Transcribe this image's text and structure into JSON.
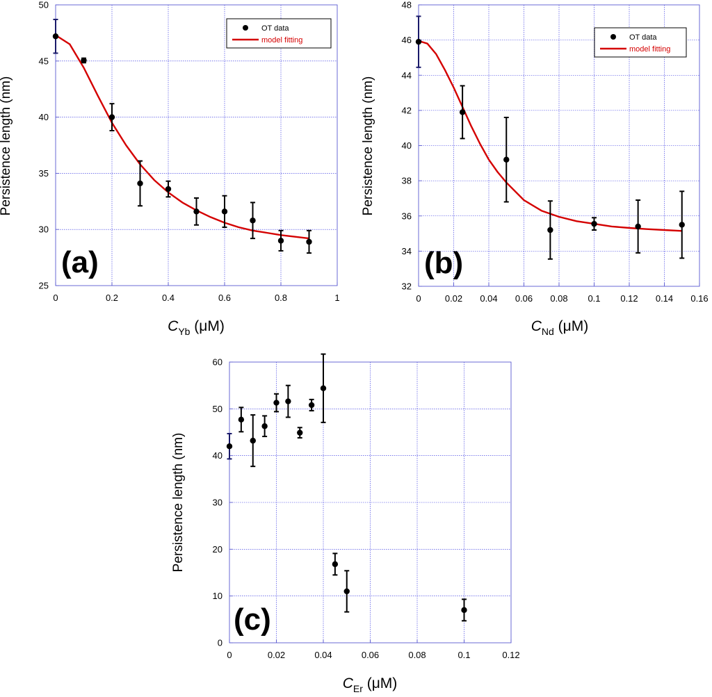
{
  "chart_data": [
    {
      "id": "a",
      "type": "scatter",
      "panel_label": "(a)",
      "xlabel_main": "C",
      "xlabel_sub": "Yb",
      "xlabel_unit": " (μM)",
      "ylabel": "Persistence length (nm)",
      "xlim": [
        0,
        1
      ],
      "ylim": [
        25,
        50
      ],
      "xticks": [
        0,
        0.2,
        0.4,
        0.6,
        0.8,
        1
      ],
      "yticks": [
        25,
        30,
        35,
        40,
        45,
        50
      ],
      "xtick_labels": [
        "0",
        "0.2",
        "0.4",
        "0.6",
        "0.8",
        "1"
      ],
      "ytick_labels": [
        "25",
        "30",
        "35",
        "40",
        "45",
        "50"
      ],
      "legend": {
        "position": "top-right",
        "data_label": "OT data",
        "fit_label": "model fitting"
      },
      "points": [
        {
          "x": 0,
          "y": 47.2,
          "err": 1.5
        },
        {
          "x": 0.1,
          "y": 45.05,
          "err": 0.2
        },
        {
          "x": 0.2,
          "y": 40.0,
          "err": 1.2
        },
        {
          "x": 0.3,
          "y": 34.1,
          "err": 2.0
        },
        {
          "x": 0.4,
          "y": 33.6,
          "err": 0.7
        },
        {
          "x": 0.5,
          "y": 31.6,
          "err": 1.2
        },
        {
          "x": 0.6,
          "y": 31.6,
          "err": 1.4
        },
        {
          "x": 0.7,
          "y": 30.8,
          "err": 1.6
        },
        {
          "x": 0.8,
          "y": 29.0,
          "err": 0.9
        },
        {
          "x": 0.9,
          "y": 28.9,
          "err": 1.0
        }
      ],
      "fit": {
        "x": [
          0,
          0.05,
          0.1,
          0.15,
          0.2,
          0.25,
          0.3,
          0.35,
          0.4,
          0.45,
          0.5,
          0.55,
          0.6,
          0.65,
          0.7,
          0.75,
          0.8,
          0.85,
          0.9
        ],
        "y": [
          47.3,
          46.5,
          44.4,
          41.9,
          39.5,
          37.5,
          35.8,
          34.4,
          33.3,
          32.4,
          31.7,
          31.1,
          30.6,
          30.2,
          29.9,
          29.7,
          29.5,
          29.35,
          29.2
        ]
      }
    },
    {
      "id": "b",
      "type": "scatter",
      "panel_label": "(b)",
      "xlabel_main": "C",
      "xlabel_sub": "Nd",
      "xlabel_unit": " (μM)",
      "ylabel": "Persistence length (nm)",
      "xlim": [
        0,
        0.16
      ],
      "ylim": [
        32,
        48
      ],
      "xticks": [
        0,
        0.02,
        0.04,
        0.06,
        0.08,
        0.1,
        0.12,
        0.14,
        0.16
      ],
      "yticks": [
        32,
        34,
        36,
        38,
        40,
        42,
        44,
        46,
        48
      ],
      "xtick_labels": [
        "0",
        "0.02",
        "0.04",
        "0.06",
        "0.08",
        "0.1",
        "0.12",
        "0.14",
        "0.16"
      ],
      "ytick_labels": [
        "32",
        "34",
        "36",
        "38",
        "40",
        "42",
        "44",
        "46",
        "48"
      ],
      "legend": {
        "position": "top-right",
        "data_label": "OT data",
        "fit_label": "model fitting"
      },
      "points": [
        {
          "x": 0,
          "y": 45.9,
          "err": 1.45
        },
        {
          "x": 0.025,
          "y": 41.9,
          "err": 1.5
        },
        {
          "x": 0.05,
          "y": 39.2,
          "err": 2.4
        },
        {
          "x": 0.075,
          "y": 35.2,
          "err": 1.65
        },
        {
          "x": 0.1,
          "y": 35.55,
          "err": 0.35
        },
        {
          "x": 0.125,
          "y": 35.4,
          "err": 1.5
        },
        {
          "x": 0.15,
          "y": 35.5,
          "err": 1.9
        }
      ],
      "fit": {
        "x": [
          0,
          0.005,
          0.01,
          0.015,
          0.02,
          0.025,
          0.03,
          0.035,
          0.04,
          0.045,
          0.05,
          0.06,
          0.07,
          0.08,
          0.09,
          0.1,
          0.11,
          0.12,
          0.13,
          0.14,
          0.15
        ],
        "y": [
          45.95,
          45.8,
          45.2,
          44.3,
          43.3,
          42.2,
          41.1,
          40.1,
          39.2,
          38.5,
          37.9,
          36.9,
          36.3,
          35.95,
          35.7,
          35.55,
          35.4,
          35.32,
          35.25,
          35.2,
          35.15
        ]
      }
    },
    {
      "id": "c",
      "type": "scatter",
      "panel_label": "(c)",
      "xlabel_main": "C",
      "xlabel_sub": "Er",
      "xlabel_unit": " (μM)",
      "ylabel": "Persistence length (nm)",
      "xlim": [
        0,
        0.12
      ],
      "ylim": [
        0,
        60
      ],
      "xticks": [
        0,
        0.02,
        0.04,
        0.06,
        0.08,
        0.1,
        0.12
      ],
      "yticks": [
        0,
        10,
        20,
        30,
        40,
        50,
        60
      ],
      "xtick_labels": [
        "0",
        "0.02",
        "0.04",
        "0.06",
        "0.08",
        "0.1",
        "0.12"
      ],
      "ytick_labels": [
        "0",
        "10",
        "20",
        "30",
        "40",
        "50",
        "60"
      ],
      "legend": null,
      "points": [
        {
          "x": 0,
          "y": 42.0,
          "err": 2.7
        },
        {
          "x": 0.005,
          "y": 47.7,
          "err": 2.6
        },
        {
          "x": 0.01,
          "y": 43.2,
          "err": 5.5
        },
        {
          "x": 0.015,
          "y": 46.3,
          "err": 2.2
        },
        {
          "x": 0.02,
          "y": 51.3,
          "err": 1.9
        },
        {
          "x": 0.025,
          "y": 51.6,
          "err": 3.4
        },
        {
          "x": 0.03,
          "y": 44.9,
          "err": 1.1
        },
        {
          "x": 0.035,
          "y": 50.8,
          "err": 1.2
        },
        {
          "x": 0.04,
          "y": 54.4,
          "err": 7.3
        },
        {
          "x": 0.045,
          "y": 16.8,
          "err": 2.3
        },
        {
          "x": 0.05,
          "y": 11.0,
          "err": 4.4
        },
        {
          "x": 0.1,
          "y": 7.0,
          "err": 2.3
        }
      ],
      "fit": null
    }
  ]
}
